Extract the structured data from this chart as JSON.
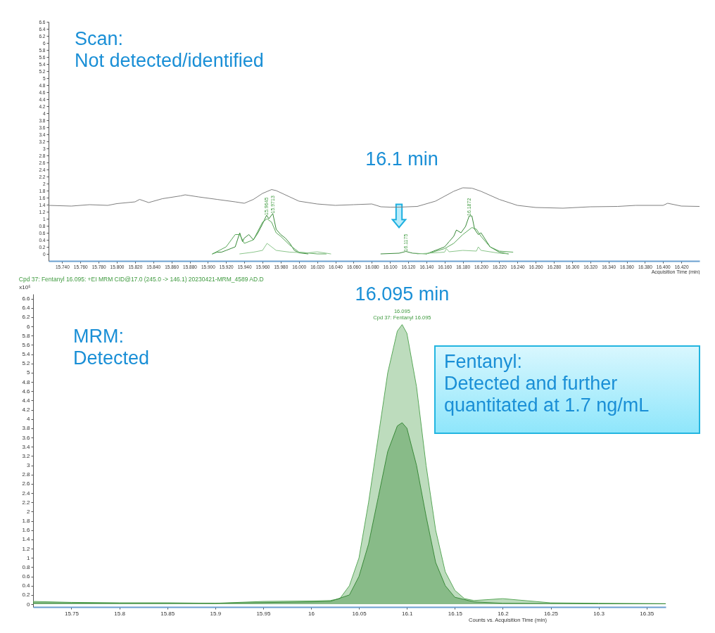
{
  "chart_data": [
    {
      "type": "line",
      "xlabel": "Acquisition Time (min)",
      "xlim": [
        15.725,
        16.44
      ],
      "ylim": [
        -0.2,
        6.6
      ],
      "xticks": [
        {
          "value": 15.74,
          "label": "15.740"
        },
        {
          "value": 15.76,
          "label": "15.760"
        },
        {
          "value": 15.78,
          "label": "15.780"
        },
        {
          "value": 15.8,
          "label": "15.800"
        },
        {
          "value": 15.82,
          "label": "15.820"
        },
        {
          "value": 15.84,
          "label": "15.840"
        },
        {
          "value": 15.86,
          "label": "15.860"
        },
        {
          "value": 15.88,
          "label": "15.880"
        },
        {
          "value": 15.9,
          "label": "15.900"
        },
        {
          "value": 15.92,
          "label": "15.920"
        },
        {
          "value": 15.94,
          "label": "15.940"
        },
        {
          "value": 15.96,
          "label": "15.960"
        },
        {
          "value": 15.98,
          "label": "15.980"
        },
        {
          "value": 16,
          "label": "16.000"
        },
        {
          "value": 16.02,
          "label": "16.020"
        },
        {
          "value": 16.04,
          "label": "16.040"
        },
        {
          "value": 16.06,
          "label": "16.060"
        },
        {
          "value": 16.08,
          "label": "16.080"
        },
        {
          "value": 16.1,
          "label": "16.100"
        },
        {
          "value": 16.12,
          "label": "16.120"
        },
        {
          "value": 16.14,
          "label": "16.140"
        },
        {
          "value": 16.16,
          "label": "16.160"
        },
        {
          "value": 16.18,
          "label": "16.180"
        },
        {
          "value": 16.2,
          "label": "16.200"
        },
        {
          "value": 16.22,
          "label": "16.220"
        },
        {
          "value": 16.24,
          "label": "16.240"
        },
        {
          "value": 16.26,
          "label": "16.260"
        },
        {
          "value": 16.28,
          "label": "16.280"
        },
        {
          "value": 16.3,
          "label": "16.300"
        },
        {
          "value": 16.32,
          "label": "16.320"
        },
        {
          "value": 16.34,
          "label": "16.340"
        },
        {
          "value": 16.36,
          "label": "16.360"
        },
        {
          "value": 16.38,
          "label": "16.380"
        },
        {
          "value": 16.4,
          "label": "16.400"
        },
        {
          "value": 16.42,
          "label": "16.420"
        }
      ],
      "yticks": [
        0,
        0.2,
        0.4,
        0.6,
        0.8,
        1,
        1.2,
        1.4,
        1.6,
        1.8,
        2,
        2.2,
        2.4,
        2.6,
        2.8,
        3,
        3.2,
        3.4,
        3.6,
        3.8,
        4,
        4.2,
        4.4,
        4.6,
        4.8,
        5,
        5.2,
        5.4,
        5.6,
        5.8,
        6,
        6.2,
        6.4,
        6.6
      ],
      "grid": false,
      "series": [
        {
          "color": "#7f7f7f",
          "x": [
            15.725,
            15.75,
            15.77,
            15.79,
            15.8,
            15.82,
            15.825,
            15.835,
            15.85,
            15.87,
            15.875,
            15.89,
            15.91,
            15.93,
            15.94,
            15.95,
            15.96,
            15.97,
            15.975,
            15.99,
            16,
            16.02,
            16.04,
            16.06,
            16.08,
            16.09,
            16.1,
            16.11,
            16.13,
            16.15,
            16.17,
            16.18,
            16.19,
            16.2,
            16.22,
            16.24,
            16.26,
            16.29,
            16.32,
            16.35,
            16.37,
            16.4,
            16.405,
            16.42,
            16.44
          ],
          "values": [
            1.38,
            1.36,
            1.4,
            1.38,
            1.43,
            1.48,
            1.55,
            1.46,
            1.57,
            1.65,
            1.68,
            1.62,
            1.55,
            1.48,
            1.44,
            1.55,
            1.72,
            1.83,
            1.8,
            1.62,
            1.5,
            1.42,
            1.38,
            1.4,
            1.42,
            1.34,
            1.33,
            1.33,
            1.35,
            1.5,
            1.78,
            1.88,
            1.87,
            1.78,
            1.55,
            1.38,
            1.32,
            1.3,
            1.34,
            1.35,
            1.38,
            1.38,
            1.44,
            1.36,
            1.35
          ]
        },
        {
          "color": "#3a8a3a",
          "x": [
            15.905,
            15.91,
            15.915,
            15.92,
            15.93,
            15.935,
            15.938,
            15.94,
            15.945,
            15.95,
            15.955,
            15.96,
            15.9645,
            15.967,
            15.9713,
            15.975,
            15.98,
            15.985,
            15.99,
            15.995,
            16,
            16.01
          ],
          "values": [
            0,
            0.05,
            0.05,
            0.1,
            0.2,
            0.6,
            0.35,
            0.45,
            0.55,
            0.4,
            0.6,
            0.85,
            1.1,
            1,
            1.15,
            0.7,
            0.55,
            0.45,
            0.3,
            0.1,
            0.03,
            0
          ]
        },
        {
          "color": "#5aa85a",
          "x": [
            15.905,
            15.92,
            15.93,
            15.935,
            15.94,
            15.95,
            15.96,
            15.965,
            15.97,
            15.975,
            15.98,
            15.99,
            16,
            16.02,
            16.03
          ],
          "values": [
            0,
            0.2,
            0.55,
            0.55,
            0.3,
            0.4,
            0.9,
            1,
            0.9,
            0.6,
            0.5,
            0.25,
            0.05,
            0,
            0
          ]
        },
        {
          "color": "#8cc68c",
          "x": [
            15.935,
            15.95,
            15.96,
            15.965,
            15.97,
            15.975,
            15.99,
            16.01,
            16.02,
            16.035
          ],
          "values": [
            0,
            0.05,
            0.1,
            0.3,
            0.2,
            0.1,
            0.05,
            0.03,
            0.06,
            0
          ]
        },
        {
          "color": "#3a8a3a",
          "x": [
            16.09,
            16.11,
            16.1175,
            16.125,
            16.14,
            16.16,
            16.165,
            16.17,
            16.173,
            16.178,
            16.183,
            16.187,
            16.19,
            16.193,
            16.197,
            16.2,
            16.21,
            16.22,
            16.23
          ],
          "values": [
            0,
            0.02,
            0.07,
            0.02,
            0,
            0.2,
            0.35,
            0.5,
            0.68,
            0.6,
            0.78,
            1.08,
            1.08,
            0.7,
            0.55,
            0.6,
            0.2,
            0.05,
            0
          ]
        },
        {
          "color": "#5aa85a",
          "x": [
            16.14,
            16.16,
            16.17,
            16.18,
            16.19,
            16.195,
            16.2,
            16.21,
            16.22,
            16.235
          ],
          "values": [
            0,
            0.15,
            0.3,
            0.55,
            0.75,
            0.7,
            0.5,
            0.2,
            0.08,
            0.05
          ]
        },
        {
          "color": "#8cc68c",
          "x": [
            16.13,
            16.16,
            16.162,
            16.165,
            16.18,
            16.195,
            16.197,
            16.2,
            16.22,
            16.23
          ],
          "values": [
            0,
            0.05,
            0.15,
            0.06,
            0.1,
            0.08,
            0.2,
            0.1,
            0.02,
            0
          ]
        }
      ],
      "annotations": [
        "Scan:\nNot detected/identified",
        "16.1 min",
        {
          "text": "15.9645",
          "x": 15.9645,
          "y": 1.1
        },
        {
          "text": "15.9713",
          "x": 15.9713,
          "y": 1.15
        },
        {
          "text": "16.1175",
          "x": 16.1175,
          "y": 0.07
        },
        {
          "text": "16.1872",
          "x": 16.1872,
          "y": 1.08
        }
      ]
    },
    {
      "type": "area",
      "title": "Cpd 37: Fentanyl 16.095: +EI MRM CID@17.0 (245.0 -> 146.1) 20230421-MRM_4589 AD.D",
      "xlabel": "Counts vs. Acquisition Time (min)",
      "ylabel": "x10⁵",
      "xlim": [
        15.71,
        16.37
      ],
      "ylim": [
        -0.06,
        6.7
      ],
      "xticks": [
        15.75,
        15.8,
        15.85,
        15.9,
        15.95,
        16,
        16.05,
        16.1,
        16.15,
        16.2,
        16.25,
        16.3,
        16.35
      ],
      "yticks": [
        0,
        0.2,
        0.4,
        0.6,
        0.8,
        1,
        1.2,
        1.4,
        1.6,
        1.8,
        2,
        2.2,
        2.4,
        2.6,
        2.8,
        3,
        3.2,
        3.4,
        3.6,
        3.8,
        4,
        4.2,
        4.4,
        4.6,
        4.8,
        5,
        5.2,
        5.4,
        5.6,
        5.8,
        6,
        6.2,
        6.4,
        6.6
      ],
      "grid": false,
      "series": [
        {
          "color": "#5aa85a",
          "x": [
            15.71,
            15.75,
            15.8,
            15.85,
            15.9,
            15.95,
            16,
            16.02,
            16.03,
            16.04,
            16.05,
            16.06,
            16.07,
            16.08,
            16.09,
            16.095,
            16.1,
            16.11,
            16.12,
            16.13,
            16.14,
            16.15,
            16.16,
            16.17,
            16.2,
            16.25,
            16.3,
            16.37
          ],
          "values": [
            0.06,
            0.04,
            0.03,
            0.03,
            0.02,
            0.06,
            0.07,
            0.08,
            0.12,
            0.4,
            1,
            2.2,
            3.6,
            5,
            5.9,
            6.04,
            5.85,
            4.7,
            3,
            1.6,
            0.7,
            0.3,
            0.12,
            0.08,
            0.12,
            0.03,
            0.02,
            0.01
          ]
        },
        {
          "color": "#3a8a3a",
          "x": [
            15.71,
            15.8,
            15.9,
            16,
            16.02,
            16.04,
            16.05,
            16.06,
            16.07,
            16.08,
            16.09,
            16.095,
            16.1,
            16.11,
            16.12,
            16.13,
            16.14,
            16.15,
            16.17,
            16.2,
            16.3,
            16.37
          ],
          "values": [
            0.03,
            0.02,
            0.02,
            0.05,
            0.06,
            0.2,
            0.6,
            1.3,
            2.3,
            3.3,
            3.85,
            3.92,
            3.8,
            3,
            1.9,
            0.9,
            0.4,
            0.15,
            0.05,
            0.02,
            0.01,
            0.01
          ]
        }
      ],
      "annotations": [
        "MRM:\nDetected",
        {
          "text": "16.095 min",
          "x": 16.095,
          "y": 6.04
        },
        {
          "text": "16.095",
          "x": 16.095,
          "y": 6.04
        },
        {
          "text": "Cpd 37: Fentanyl 16.095",
          "x": 16.095,
          "y": 6.04
        },
        "Fentanyl:\nDetected and further\nquantitated at 1.7 ng/mL"
      ]
    }
  ]
}
